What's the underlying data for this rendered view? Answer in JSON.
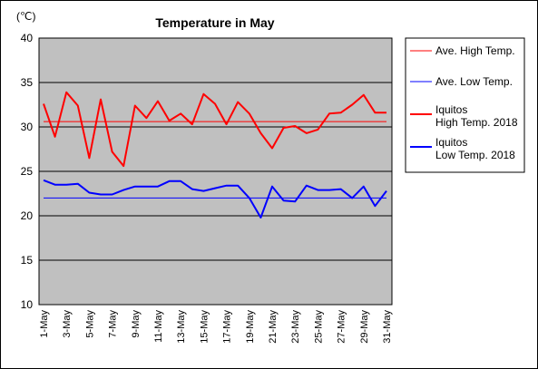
{
  "chart_data": {
    "type": "line",
    "title": "Temperature in May",
    "unit_label": "(℃)",
    "ylim": [
      10,
      40
    ],
    "yticks": [
      10,
      15,
      20,
      25,
      30,
      35,
      40
    ],
    "grid": true,
    "legend_position": "right",
    "x": [
      "1-May",
      "2-May",
      "3-May",
      "4-May",
      "5-May",
      "6-May",
      "7-May",
      "8-May",
      "9-May",
      "10-May",
      "11-May",
      "12-May",
      "13-May",
      "14-May",
      "15-May",
      "16-May",
      "17-May",
      "18-May",
      "19-May",
      "20-May",
      "21-May",
      "22-May",
      "23-May",
      "24-May",
      "25-May",
      "26-May",
      "27-May",
      "28-May",
      "29-May",
      "30-May",
      "31-May"
    ],
    "xtick_labels": [
      "1-May",
      "3-May",
      "5-May",
      "7-May",
      "9-May",
      "11-May",
      "13-May",
      "15-May",
      "17-May",
      "19-May",
      "21-May",
      "23-May",
      "25-May",
      "27-May",
      "29-May",
      "31-May"
    ],
    "series": [
      {
        "name": "Ave. High Temp.",
        "color": "#ff0000",
        "width": 1,
        "values": [
          30.6,
          30.6,
          30.6,
          30.6,
          30.6,
          30.6,
          30.6,
          30.6,
          30.6,
          30.6,
          30.6,
          30.6,
          30.6,
          30.6,
          30.6,
          30.6,
          30.6,
          30.6,
          30.6,
          30.6,
          30.6,
          30.6,
          30.6,
          30.6,
          30.6,
          30.6,
          30.6,
          30.6,
          30.6,
          30.6,
          30.6
        ]
      },
      {
        "name": "Ave. Low Temp.",
        "color": "#0000ff",
        "width": 1,
        "values": [
          22.0,
          22.0,
          22.0,
          22.0,
          22.0,
          22.0,
          22.0,
          22.0,
          22.0,
          22.0,
          22.0,
          22.0,
          22.0,
          22.0,
          22.0,
          22.0,
          22.0,
          22.0,
          22.0,
          22.0,
          22.0,
          22.0,
          22.0,
          22.0,
          22.0,
          22.0,
          22.0,
          22.0,
          22.0,
          22.0,
          22.0
        ]
      },
      {
        "name": "Iquitos High Temp. 2018",
        "name_lines": [
          "Iquitos",
          "High Temp. 2018"
        ],
        "color": "#ff0000",
        "width": 2,
        "values": [
          32.6,
          28.9,
          33.9,
          32.4,
          26.5,
          33.1,
          27.2,
          25.6,
          32.4,
          31.0,
          32.9,
          30.7,
          31.5,
          30.3,
          33.7,
          32.6,
          30.3,
          32.8,
          31.5,
          29.3,
          27.6,
          29.9,
          30.1,
          29.3,
          29.7,
          31.5,
          31.6,
          32.5,
          33.6,
          31.6,
          31.6
        ]
      },
      {
        "name": "Iquitos Low Temp. 2018",
        "name_lines": [
          "Iquitos",
          "Low Temp. 2018"
        ],
        "color": "#0000ff",
        "width": 2,
        "values": [
          24.0,
          23.5,
          23.5,
          23.6,
          22.6,
          22.4,
          22.4,
          22.9,
          23.3,
          23.3,
          23.3,
          23.9,
          23.9,
          23.0,
          22.8,
          23.1,
          23.4,
          23.4,
          22.0,
          19.8,
          23.3,
          21.7,
          21.6,
          23.4,
          22.9,
          22.9,
          23.0,
          22.0,
          23.3,
          21.1,
          22.8
        ]
      }
    ]
  }
}
